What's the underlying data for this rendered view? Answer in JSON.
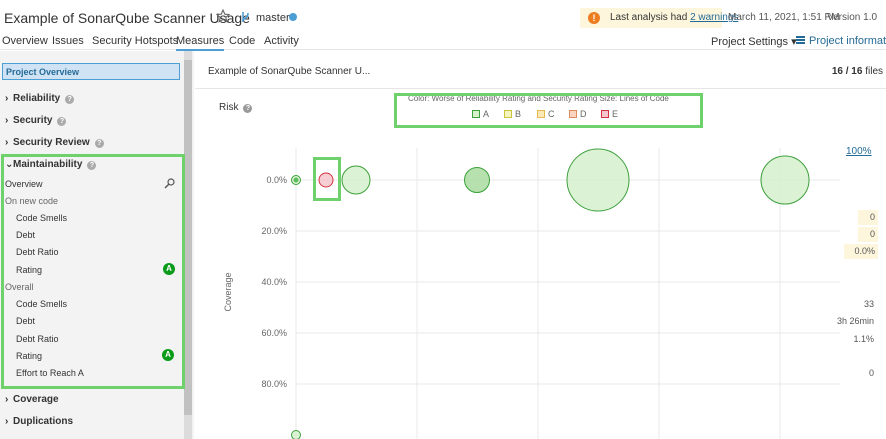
{
  "header": {
    "project_title": "Example of SonarQube Scanner Usage",
    "branch": "master",
    "warning_prefix": "Last analysis had ",
    "warning_link": "2 warnings",
    "analysis_date": "March 11, 2021, 1:51 PM",
    "version": "Version 1.0",
    "icons": [
      "star-icon",
      "branch-icon",
      "warning-icon"
    ]
  },
  "nav": {
    "tabs": [
      {
        "label": "Overview"
      },
      {
        "label": "Issues"
      },
      {
        "label": "Security Hotspots"
      },
      {
        "label": "Measures",
        "active": true
      },
      {
        "label": "Code"
      },
      {
        "label": "Activity"
      }
    ],
    "project_settings": "Project Settings ▾",
    "project_information": "Project information"
  },
  "sidebar": {
    "project_overview": "Project Overview",
    "sections": {
      "reliability": "Reliability",
      "security": "Security",
      "security_review": "Security Review",
      "maintainability": "Maintainability",
      "coverage": "Coverage",
      "duplications": "Duplications"
    },
    "maintainability": {
      "overview": "Overview",
      "new_code_label": "On new code",
      "new_code": [
        {
          "label": "Code Smells",
          "value": "0"
        },
        {
          "label": "Debt",
          "value": "0"
        },
        {
          "label": "Debt Ratio",
          "value": "0.0%"
        },
        {
          "label": "Rating",
          "value": "A"
        }
      ],
      "overall_label": "Overall",
      "overall": [
        {
          "label": "Code Smells",
          "value": "33"
        },
        {
          "label": "Debt",
          "value": "3h 26min"
        },
        {
          "label": "Debt Ratio",
          "value": "1.1%"
        },
        {
          "label": "Rating",
          "value": "A"
        },
        {
          "label": "Effort to Reach A",
          "value": "0"
        }
      ]
    }
  },
  "main": {
    "breadcrumb": "Example of SonarQube Scanner U...",
    "files_count": "16 / 16",
    "files_label": " files",
    "risk_title": "Risk",
    "legend_title": "Color: Worse of Reliability Rating and Security Rating   Size: Lines of Code",
    "legend": [
      {
        "label": "A",
        "color": "#b0d513"
      },
      {
        "label": "B",
        "color": "#eabe06"
      },
      {
        "label": "C",
        "color": "#ed7d20"
      },
      {
        "label": "D",
        "color": "#d02f3a"
      },
      {
        "label": "E",
        "color": "#d4333f"
      }
    ],
    "zoom": "100%"
  },
  "chart_data": {
    "type": "scatter",
    "ylabel": "Coverage",
    "y_ticks": [
      "0.0%",
      "20.0%",
      "40.0%",
      "60.0%",
      "80.0%"
    ],
    "y_range": [
      0,
      100
    ],
    "y_reversed": true,
    "points": [
      {
        "y": 0,
        "rating": "A",
        "size": "small"
      },
      {
        "y": 0,
        "rating": "E",
        "size": "small"
      },
      {
        "y": 0,
        "rating": "A",
        "size": "medium"
      },
      {
        "y": 0,
        "rating": "A",
        "size": "medium"
      },
      {
        "y": 0,
        "rating": "A",
        "size": "large"
      },
      {
        "y": 0,
        "rating": "A",
        "size": "large"
      },
      {
        "y": 100,
        "rating": "A",
        "size": "small"
      }
    ]
  }
}
